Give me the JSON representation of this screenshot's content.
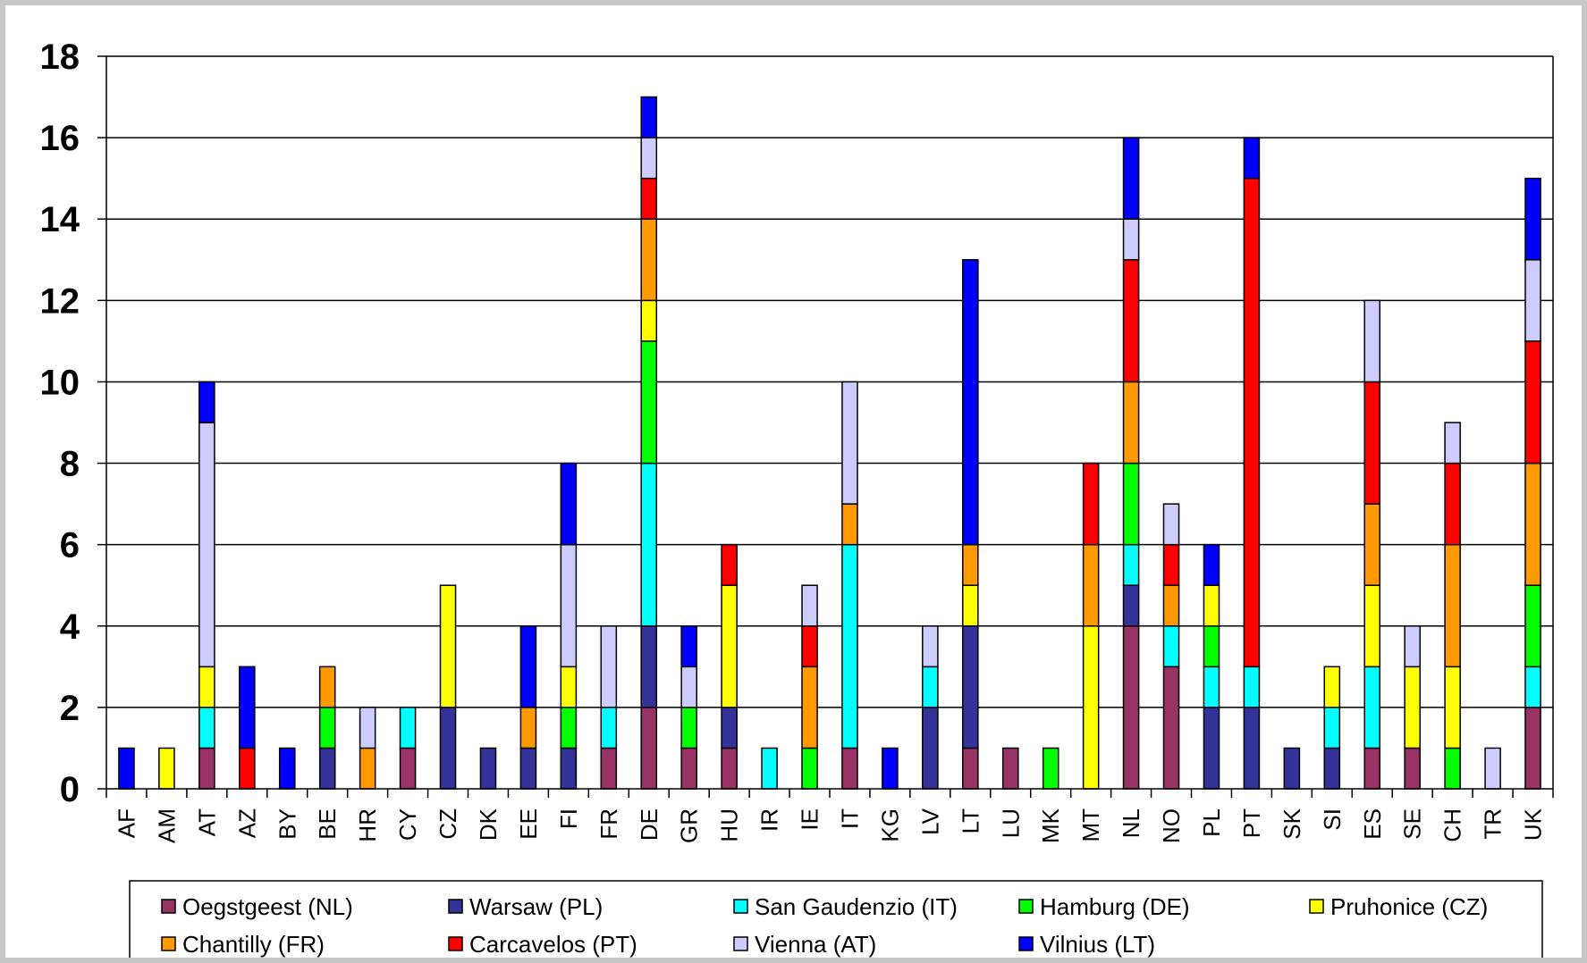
{
  "chart_data": {
    "type": "bar",
    "stacked": true,
    "title": "",
    "xlabel": "",
    "ylabel": "",
    "ylim": [
      0,
      18
    ],
    "y_ticks": [
      0,
      2,
      4,
      6,
      8,
      10,
      12,
      14,
      16,
      18
    ],
    "grid": true,
    "legend_position": "bottom",
    "categories": [
      "AF",
      "AM",
      "AT",
      "AZ",
      "BY",
      "BE",
      "HR",
      "CY",
      "CZ",
      "DK",
      "EE",
      "FI",
      "FR",
      "DE",
      "GR",
      "HU",
      "IR",
      "IE",
      "IT",
      "KG",
      "LV",
      "LT",
      "LU",
      "MK",
      "MT",
      "NL",
      "NO",
      "PL",
      "PT",
      "SK",
      "SI",
      "ES",
      "SE",
      "CH",
      "TR",
      "UK"
    ],
    "series": [
      {
        "name": "Oegstgeest (NL)",
        "color": "#993366",
        "values": [
          0,
          0,
          1,
          0,
          0,
          0,
          0,
          1,
          0,
          0,
          0,
          0,
          1,
          2,
          1,
          1,
          0,
          0,
          1,
          0,
          0,
          1,
          1,
          0,
          0,
          4,
          3,
          0,
          0,
          0,
          0,
          1,
          1,
          0,
          0,
          2
        ]
      },
      {
        "name": "Warsaw (PL)",
        "color": "#333399",
        "values": [
          0,
          0,
          0,
          0,
          0,
          1,
          0,
          0,
          2,
          1,
          1,
          1,
          0,
          2,
          0,
          1,
          0,
          0,
          0,
          0,
          2,
          3,
          0,
          0,
          0,
          1,
          0,
          2,
          2,
          1,
          1,
          0,
          0,
          0,
          0,
          0
        ]
      },
      {
        "name": "San Gaudenzio (IT)",
        "color": "#00ffff",
        "values": [
          0,
          0,
          1,
          0,
          0,
          0,
          0,
          1,
          0,
          0,
          0,
          0,
          1,
          4,
          0,
          0,
          1,
          0,
          5,
          0,
          1,
          0,
          0,
          0,
          0,
          1,
          1,
          1,
          1,
          0,
          1,
          2,
          0,
          0,
          0,
          1
        ]
      },
      {
        "name": "Hamburg (DE)",
        "color": "#00ff00",
        "values": [
          0,
          0,
          0,
          0,
          0,
          1,
          0,
          0,
          0,
          0,
          0,
          1,
          0,
          3,
          1,
          0,
          0,
          1,
          0,
          0,
          0,
          0,
          0,
          1,
          0,
          2,
          0,
          1,
          0,
          0,
          0,
          0,
          0,
          1,
          0,
          2
        ]
      },
      {
        "name": "Pruhonice (CZ)",
        "color": "#ffff00",
        "values": [
          0,
          1,
          1,
          0,
          0,
          0,
          0,
          0,
          3,
          0,
          0,
          1,
          0,
          1,
          0,
          3,
          0,
          0,
          0,
          0,
          0,
          1,
          0,
          0,
          4,
          0,
          0,
          1,
          0,
          0,
          1,
          2,
          2,
          2,
          0,
          0
        ]
      },
      {
        "name": "Chantilly (FR)",
        "color": "#ff9900",
        "values": [
          0,
          0,
          0,
          0,
          0,
          1,
          1,
          0,
          0,
          0,
          1,
          0,
          0,
          2,
          0,
          0,
          0,
          2,
          1,
          0,
          0,
          1,
          0,
          0,
          2,
          2,
          1,
          0,
          0,
          0,
          0,
          2,
          0,
          3,
          0,
          3
        ]
      },
      {
        "name": "Carcavelos (PT)",
        "color": "#ff0000",
        "values": [
          0,
          0,
          0,
          1,
          0,
          0,
          0,
          0,
          0,
          0,
          0,
          0,
          0,
          1,
          0,
          1,
          0,
          1,
          0,
          0,
          0,
          0,
          0,
          0,
          2,
          3,
          1,
          0,
          12,
          0,
          0,
          3,
          0,
          2,
          0,
          3
        ]
      },
      {
        "name": "Vienna (AT)",
        "color": "#ccccff",
        "values": [
          0,
          0,
          6,
          0,
          0,
          0,
          1,
          0,
          0,
          0,
          0,
          3,
          2,
          1,
          1,
          0,
          0,
          1,
          3,
          0,
          1,
          0,
          0,
          0,
          0,
          1,
          1,
          0,
          0,
          0,
          0,
          2,
          1,
          1,
          1,
          2
        ]
      },
      {
        "name": "Vilnius (LT)",
        "color": "#0000ff",
        "values": [
          1,
          0,
          1,
          2,
          1,
          0,
          0,
          0,
          0,
          0,
          2,
          2,
          0,
          1,
          1,
          0,
          0,
          0,
          0,
          1,
          0,
          7,
          0,
          0,
          0,
          2,
          0,
          1,
          1,
          0,
          0,
          0,
          0,
          0,
          0,
          2
        ]
      }
    ]
  }
}
